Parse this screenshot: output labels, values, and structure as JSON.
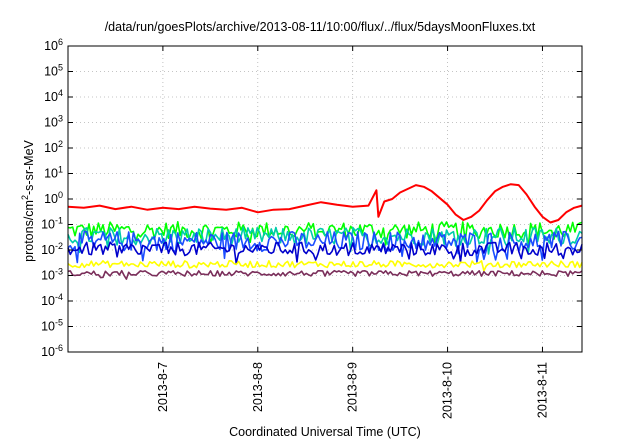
{
  "chart_data": {
    "type": "line",
    "title": "/data/run/goesPlots/archive/2013-08-11/10:00/flux/../flux/5daysMoonFluxes.txt",
    "xlabel": "Coordinated Universal Time (UTC)",
    "ylabel": {
      "prefix": "protons/cm",
      "sup": "2",
      "suffix": "-s-sr-MeV"
    },
    "yscale": "log",
    "ylim": [
      1e-06,
      1000000.0
    ],
    "yticks": [
      {
        "value": 1e-06,
        "base": "10",
        "exp": "-6"
      },
      {
        "value": 1e-05,
        "base": "10",
        "exp": "-5"
      },
      {
        "value": 0.0001,
        "base": "10",
        "exp": "-4"
      },
      {
        "value": 0.001,
        "base": "10",
        "exp": "-3"
      },
      {
        "value": 0.01,
        "base": "10",
        "exp": "-2"
      },
      {
        "value": 0.1,
        "base": "10",
        "exp": "-1"
      },
      {
        "value": 1,
        "base": "10",
        "exp": "0"
      },
      {
        "value": 10,
        "base": "10",
        "exp": "1"
      },
      {
        "value": 100,
        "base": "10",
        "exp": "2"
      },
      {
        "value": 1000,
        "base": "10",
        "exp": "3"
      },
      {
        "value": 10000,
        "base": "10",
        "exp": "4"
      },
      {
        "value": 100000,
        "base": "10",
        "exp": "5"
      },
      {
        "value": 1000000,
        "base": "10",
        "exp": "6"
      }
    ],
    "xlim": [
      "2013-08-06 00:00",
      "2013-08-11 10:00"
    ],
    "xticks": [
      {
        "date": "2013-08-07",
        "label": "2013-8-7"
      },
      {
        "date": "2013-08-08",
        "label": "2013-8-8"
      },
      {
        "date": "2013-08-09",
        "label": "2013-8-9"
      },
      {
        "date": "2013-08-10",
        "label": "2013-8-10"
      },
      {
        "date": "2013-08-11",
        "label": "2013-8-11"
      }
    ],
    "grid": true,
    "series": [
      {
        "color": "#ff0000",
        "points": [
          [
            "2013-08-06 00:00",
            0.5
          ],
          [
            "2013-08-06 04:00",
            0.45
          ],
          [
            "2013-08-06 08:00",
            0.55
          ],
          [
            "2013-08-06 12:00",
            0.4
          ],
          [
            "2013-08-06 16:00",
            0.5
          ],
          [
            "2013-08-06 20:00",
            0.38
          ],
          [
            "2013-08-07 00:00",
            0.45
          ],
          [
            "2013-08-07 04:00",
            0.4
          ],
          [
            "2013-08-07 08:00",
            0.5
          ],
          [
            "2013-08-07 12:00",
            0.42
          ],
          [
            "2013-08-07 16:00",
            0.38
          ],
          [
            "2013-08-07 20:00",
            0.45
          ],
          [
            "2013-08-08 00:00",
            0.3
          ],
          [
            "2013-08-08 04:00",
            0.38
          ],
          [
            "2013-08-08 08:00",
            0.4
          ],
          [
            "2013-08-08 12:00",
            0.55
          ],
          [
            "2013-08-08 16:00",
            0.75
          ],
          [
            "2013-08-08 20:00",
            0.6
          ],
          [
            "2013-08-09 00:00",
            0.5
          ],
          [
            "2013-08-09 04:00",
            0.55
          ],
          [
            "2013-08-09 06:00",
            2.2
          ],
          [
            "2013-08-09 06:30",
            0.2
          ],
          [
            "2013-08-09 08:00",
            0.8
          ],
          [
            "2013-08-09 10:00",
            1.0
          ],
          [
            "2013-08-09 12:00",
            1.8
          ],
          [
            "2013-08-09 16:00",
            3.5
          ],
          [
            "2013-08-09 18:00",
            3.0
          ],
          [
            "2013-08-09 20:00",
            2.0
          ],
          [
            "2013-08-10 00:00",
            0.6
          ],
          [
            "2013-08-10 02:00",
            0.25
          ],
          [
            "2013-08-10 04:00",
            0.15
          ],
          [
            "2013-08-10 06:00",
            0.2
          ],
          [
            "2013-08-10 08:00",
            0.35
          ],
          [
            "2013-08-10 10:00",
            0.9
          ],
          [
            "2013-08-10 12:00",
            2.0
          ],
          [
            "2013-08-10 14:00",
            3.0
          ],
          [
            "2013-08-10 16:00",
            3.8
          ],
          [
            "2013-08-10 18:00",
            3.5
          ],
          [
            "2013-08-10 20:00",
            1.5
          ],
          [
            "2013-08-10 22:00",
            0.5
          ],
          [
            "2013-08-11 00:00",
            0.2
          ],
          [
            "2013-08-11 02:00",
            0.12
          ],
          [
            "2013-08-11 04:00",
            0.15
          ],
          [
            "2013-08-11 06:00",
            0.3
          ],
          [
            "2013-08-11 08:00",
            0.45
          ],
          [
            "2013-08-11 10:00",
            0.55
          ]
        ]
      },
      {
        "color": "#00ff00",
        "level": 0.06,
        "jitter": 0.15
      },
      {
        "color": "#00ccaa",
        "level": 0.035,
        "jitter": 0.16
      },
      {
        "color": "#1a4cff",
        "level": 0.022,
        "jitter": 0.18
      },
      {
        "color": "#0000cc",
        "level": 0.011,
        "jitter": 0.12
      },
      {
        "color": "#ffff00",
        "level": 0.0028,
        "jitter": 0.06
      },
      {
        "color": "#7a2e5a",
        "level": 0.0012,
        "jitter": 0.05
      }
    ]
  }
}
